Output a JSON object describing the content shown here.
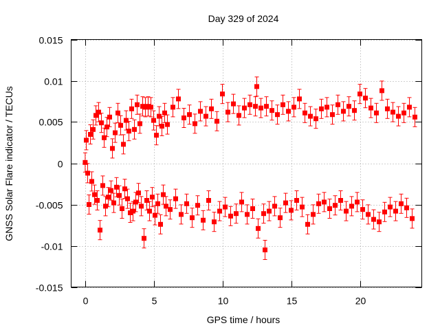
{
  "chart_data": {
    "type": "scatter",
    "title": "Day 329 of 2024",
    "xlabel": "GPS time / hours",
    "ylabel": "GNSS Solar Flare indicator / TECUs",
    "xlim": [
      -1,
      24.5
    ],
    "ylim": [
      -0.015,
      0.015
    ],
    "x_ticks": [
      0,
      5,
      10,
      15,
      20
    ],
    "y_ticks": [
      -0.015,
      -0.01,
      -0.005,
      0,
      0.005,
      0.01,
      0.015
    ],
    "x_tick_labels": [
      "0",
      "5",
      "10",
      "15",
      "20"
    ],
    "y_tick_labels": [
      "-0.015",
      "-0.01",
      "-0.005",
      "0",
      "0.005",
      "0.01",
      "0.015"
    ],
    "grid": true,
    "legend": "none",
    "marker": "square",
    "error_bars": true,
    "color": "#ff0000",
    "series": [
      {
        "x": [
          0.02,
          0.1,
          0.2,
          0.3,
          0.4,
          0.5,
          0.6,
          0.7,
          0.8,
          0.9,
          1.0,
          1.1,
          1.2,
          1.3,
          1.4,
          1.5,
          1.6,
          1.7,
          1.8,
          1.9,
          2.0,
          2.1,
          2.2,
          2.3,
          2.4,
          2.5,
          2.6,
          2.7,
          2.8,
          2.9,
          3.0,
          3.1,
          3.2,
          3.3,
          3.4,
          3.5,
          3.6,
          3.7,
          3.8,
          3.9,
          4.0,
          4.1,
          4.2,
          4.3,
          4.4,
          4.5,
          4.6,
          4.7,
          4.8,
          4.9,
          5.0,
          5.1,
          5.2,
          5.3,
          5.4,
          5.5,
          5.6,
          5.7,
          5.8,
          5.9,
          6.0,
          6.2,
          6.4,
          6.6,
          6.8,
          7.0,
          7.2,
          7.4,
          7.6,
          7.8,
          8.0,
          8.2,
          8.4,
          8.6,
          8.8,
          9.0,
          9.2,
          9.4,
          9.6,
          9.8,
          10.0,
          10.2,
          10.4,
          10.6,
          10.8,
          11.0,
          11.2,
          11.4,
          11.6,
          11.8,
          12.0,
          12.2,
          12.4,
          12.5,
          12.6,
          12.8,
          13.0,
          13.1,
          13.2,
          13.4,
          13.6,
          13.8,
          14.0,
          14.2,
          14.4,
          14.6,
          14.8,
          15.0,
          15.2,
          15.4,
          15.6,
          15.8,
          16.0,
          16.2,
          16.4,
          16.6,
          16.8,
          17.0,
          17.2,
          17.4,
          17.6,
          17.8,
          18.0,
          18.2,
          18.4,
          18.6,
          18.8,
          19.0,
          19.2,
          19.4,
          19.6,
          19.8,
          20.0,
          20.2,
          20.4,
          20.6,
          20.8,
          21.0,
          21.2,
          21.4,
          21.6,
          21.8,
          22.0,
          22.2,
          22.4,
          22.6,
          22.8,
          23.0,
          23.2,
          23.4,
          23.6,
          23.8,
          24.0
        ],
        "y": [
          0.0001,
          0.0028,
          -0.0012,
          -0.005,
          0.0035,
          -0.0022,
          0.0041,
          -0.0038,
          0.0058,
          -0.0045,
          0.0062,
          -0.0081,
          0.0049,
          -0.0027,
          0.0031,
          -0.0052,
          0.0044,
          -0.0041,
          0.0056,
          -0.0033,
          0.0018,
          -0.0048,
          0.0037,
          -0.0029,
          0.0061,
          -0.0039,
          0.0046,
          -0.0055,
          0.0023,
          -0.0031,
          0.0052,
          -0.0043,
          0.0039,
          -0.006,
          0.0066,
          -0.0058,
          0.0041,
          -0.0047,
          0.0071,
          -0.0036,
          0.0048,
          -0.0052,
          0.0069,
          -0.0091,
          0.0068,
          -0.0045,
          0.0069,
          -0.0058,
          0.0068,
          -0.0041,
          0.0052,
          -0.0063,
          0.0034,
          -0.0049,
          0.0057,
          -0.0074,
          0.0045,
          -0.0038,
          0.0061,
          -0.0052,
          0.0047,
          -0.0056,
          0.0068,
          -0.0043,
          0.0078,
          -0.0062,
          0.0055,
          -0.0049,
          0.0059,
          -0.0066,
          0.0048,
          -0.0051,
          0.0063,
          -0.0069,
          0.0057,
          -0.0045,
          0.0066,
          -0.0071,
          0.0051,
          -0.0058,
          0.0084,
          -0.0053,
          0.0062,
          -0.0064,
          0.0072,
          -0.0061,
          0.0058,
          -0.0047,
          0.0067,
          -0.0062,
          0.0071,
          -0.0055,
          0.0069,
          0.0093,
          -0.0079,
          0.0067,
          -0.0061,
          -0.0105,
          0.0069,
          -0.0058,
          0.0064,
          -0.0052,
          0.0059,
          -0.0066,
          0.0071,
          -0.0048,
          0.0063,
          -0.0057,
          0.0068,
          -0.0045,
          0.0078,
          -0.0053,
          0.0061,
          -0.0074,
          0.0057,
          -0.0062,
          0.0054,
          -0.0049,
          0.0066,
          -0.0047,
          0.0068,
          -0.0055,
          0.0059,
          -0.0051,
          0.0071,
          -0.0045,
          0.0063,
          -0.0058,
          0.0069,
          -0.0052,
          0.0064,
          -0.0047,
          0.0084,
          -0.0056,
          0.0079,
          -0.0062,
          0.0067,
          -0.0068,
          0.0061,
          -0.0071,
          0.0088,
          -0.0059,
          0.0066,
          -0.0053,
          0.0062,
          -0.0058,
          0.0057,
          -0.0049,
          0.0061,
          -0.0054,
          0.0068,
          -0.0067,
          0.0056
        ]
      }
    ]
  }
}
